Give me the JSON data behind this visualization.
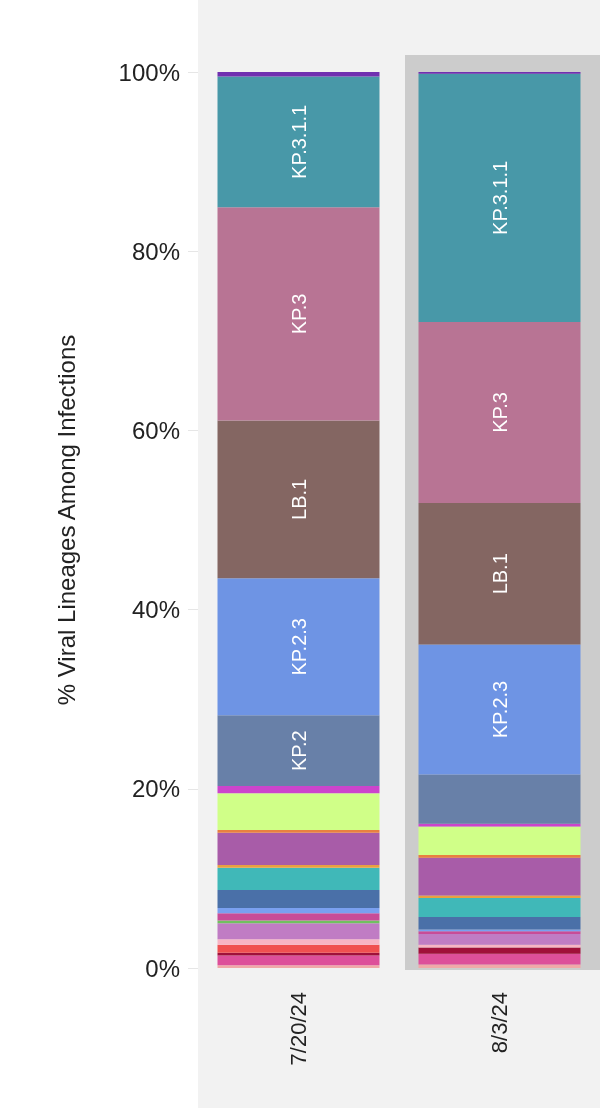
{
  "chart_data": {
    "type": "bar",
    "stacked": true,
    "ylabel": "% Viral Lineages Among Infections",
    "categories": [
      "7/20/24",
      "8/3/24"
    ],
    "ylim": [
      0,
      100
    ],
    "yticks": [
      {
        "value": 0,
        "label": "0%"
      },
      {
        "value": 20,
        "label": "20%"
      },
      {
        "value": 40,
        "label": "40%"
      },
      {
        "value": 60,
        "label": "60%"
      },
      {
        "value": 80,
        "label": "80%"
      },
      {
        "value": 100,
        "label": "100%"
      }
    ],
    "grid": false,
    "series": [
      {
        "color": "#f0a8a8",
        "values": [
          0.3,
          0.4
        ]
      },
      {
        "color": "#dd4f9a",
        "values": [
          1.1,
          1.2
        ]
      },
      {
        "color": "#a0103a",
        "values": [
          0.3,
          0.7
        ]
      },
      {
        "color": "#f05050",
        "values": [
          0.9,
          0
        ]
      },
      {
        "color": "#f8b4c4",
        "values": [
          0.6,
          0.3
        ]
      },
      {
        "color": "#c07cc4",
        "values": [
          1.8,
          1.2
        ]
      },
      {
        "color": "#70c060",
        "values": [
          0.3,
          0
        ]
      },
      {
        "color": "#c84c98",
        "values": [
          0.8,
          0.3
        ]
      },
      {
        "color": "#7aa0f0",
        "values": [
          0.6,
          0.2
        ]
      },
      {
        "color": "#4a70a8",
        "values": [
          2.0,
          1.4
        ]
      },
      {
        "color": "#40b8b8",
        "values": [
          2.5,
          2.1
        ]
      },
      {
        "color": "#e8a040",
        "values": [
          0.3,
          0.3
        ]
      },
      {
        "color": "#a85ca8",
        "values": [
          3.6,
          4.2
        ]
      },
      {
        "color": "#e88040",
        "values": [
          0.3,
          0.3
        ]
      },
      {
        "color": "#d0ff88",
        "values": [
          4.1,
          3.2
        ]
      },
      {
        "color": "#cc44cc",
        "values": [
          0.8,
          0.3
        ]
      },
      {
        "color": "#6880a8",
        "values": [
          7.9,
          5.5
        ],
        "value_labels": [
          "KP.2",
          null
        ]
      },
      {
        "color": "#6e94e4",
        "values": [
          15.3,
          14.5
        ],
        "value_labels": [
          "KP.2.3",
          "KP.2.3"
        ]
      },
      {
        "color": "#846662",
        "values": [
          17.6,
          15.8
        ],
        "value_labels": [
          "LB.1",
          "LB.1"
        ]
      },
      {
        "color": "#b87494",
        "values": [
          23.8,
          20.2
        ],
        "value_labels": [
          "KP.3",
          "KP.3"
        ]
      },
      {
        "color": "#4898a8",
        "values": [
          14.6,
          27.7
        ],
        "value_labels": [
          "KP.3.1.1",
          "KP.3.1.1"
        ]
      },
      {
        "color": "#7030b0",
        "values": [
          0.5,
          0.2
        ]
      }
    ]
  }
}
